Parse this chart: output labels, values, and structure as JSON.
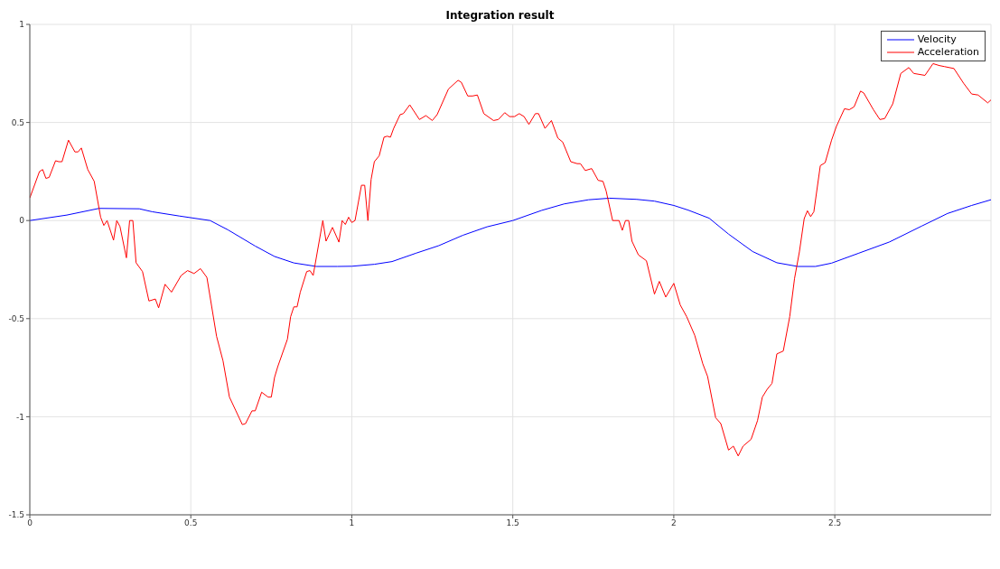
{
  "chart_data": {
    "type": "line",
    "title": "Integration result",
    "xlim": [
      0,
      2.985
    ],
    "xticks": [
      0,
      0.5,
      1,
      1.5,
      2,
      2.5
    ],
    "ylim": [
      -1.5,
      1
    ],
    "yticks": [
      -1.5,
      -1,
      -0.5,
      0,
      0.5,
      1
    ],
    "grid": true,
    "legend": "top right",
    "marker": "none",
    "line_style": "solid",
    "series": [
      {
        "name": "Velocity",
        "color": "#0000ff",
        "x": [
          0,
          0.115,
          0.215,
          0.34,
          0.38,
          0.465,
          0.56,
          0.615,
          0.7,
          0.76,
          0.82,
          0.89,
          0.955,
          1.0,
          1.07,
          1.125,
          1.2,
          1.27,
          1.345,
          1.42,
          1.5,
          1.59,
          1.66,
          1.735,
          1.8,
          1.885,
          1.94,
          2.0,
          2.045,
          2.11,
          2.17,
          2.245,
          2.32,
          2.385,
          2.44,
          2.49,
          2.575,
          2.67,
          2.77,
          2.85,
          2.925,
          2.985
        ],
        "values": [
          0,
          0.028,
          0.062,
          0.06,
          0.045,
          0.023,
          0,
          -0.047,
          -0.13,
          -0.183,
          -0.216,
          -0.234,
          -0.234,
          -0.233,
          -0.223,
          -0.209,
          -0.166,
          -0.128,
          -0.075,
          -0.032,
          0,
          0.052,
          0.085,
          0.106,
          0.114,
          0.108,
          0.099,
          0.077,
          0.053,
          0.012,
          -0.069,
          -0.158,
          -0.215,
          -0.234,
          -0.234,
          -0.217,
          -0.166,
          -0.109,
          -0.028,
          0.036,
          0.077,
          0.106
        ]
      },
      {
        "name": "Acceleration",
        "color": "#ff0000",
        "x": [
          0,
          0.03,
          0.04,
          0.05,
          0.06,
          0.08,
          0.09,
          0.1,
          0.12,
          0.14,
          0.15,
          0.16,
          0.18,
          0.2,
          0.22,
          0.23,
          0.24,
          0.26,
          0.27,
          0.28,
          0.3,
          0.31,
          0.32,
          0.33,
          0.35,
          0.37,
          0.39,
          0.4,
          0.42,
          0.44,
          0.47,
          0.49,
          0.51,
          0.53,
          0.55,
          0.58,
          0.6,
          0.62,
          0.64,
          0.66,
          0.67,
          0.69,
          0.7,
          0.72,
          0.74,
          0.75,
          0.76,
          0.77,
          0.8,
          0.81,
          0.82,
          0.83,
          0.84,
          0.86,
          0.87,
          0.88,
          0.91,
          0.92,
          0.94,
          0.96,
          0.97,
          0.98,
          0.99,
          1.0,
          1.01,
          1.03,
          1.04,
          1.05,
          1.06,
          1.07,
          1.085,
          1.1,
          1.11,
          1.12,
          1.13,
          1.15,
          1.16,
          1.18,
          1.21,
          1.23,
          1.25,
          1.265,
          1.3,
          1.33,
          1.34,
          1.36,
          1.375,
          1.39,
          1.41,
          1.44,
          1.455,
          1.475,
          1.49,
          1.505,
          1.52,
          1.535,
          1.55,
          1.57,
          1.58,
          1.6,
          1.62,
          1.64,
          1.655,
          1.68,
          1.7,
          1.71,
          1.725,
          1.745,
          1.765,
          1.78,
          1.79,
          1.81,
          1.83,
          1.84,
          1.85,
          1.86,
          1.87,
          1.89,
          1.915,
          1.94,
          1.955,
          1.975,
          2.0,
          2.02,
          2.04,
          2.065,
          2.09,
          2.105,
          2.13,
          2.146,
          2.17,
          2.185,
          2.2,
          2.215,
          2.24,
          2.26,
          2.275,
          2.29,
          2.305,
          2.32,
          2.34,
          2.36,
          2.375,
          2.39,
          2.405,
          2.415,
          2.425,
          2.435,
          2.455,
          2.47,
          2.49,
          2.505,
          2.53,
          2.545,
          2.56,
          2.58,
          2.59,
          2.62,
          2.64,
          2.655,
          2.68,
          2.705,
          2.73,
          2.745,
          2.78,
          2.805,
          2.825,
          2.84,
          2.87,
          2.9,
          2.925,
          2.945,
          2.975,
          2.985
        ],
        "values": [
          0.115,
          0.25,
          0.26,
          0.215,
          0.22,
          0.305,
          0.3,
          0.3,
          0.41,
          0.35,
          0.35,
          0.37,
          0.26,
          0.2,
          0.017,
          -0.025,
          0,
          -0.1,
          0,
          -0.03,
          -0.19,
          0,
          0,
          -0.215,
          -0.26,
          -0.41,
          -0.4,
          -0.445,
          -0.325,
          -0.365,
          -0.28,
          -0.255,
          -0.27,
          -0.245,
          -0.29,
          -0.59,
          -0.715,
          -0.9,
          -0.97,
          -1.04,
          -1.035,
          -0.97,
          -0.97,
          -0.875,
          -0.9,
          -0.9,
          -0.8,
          -0.745,
          -0.605,
          -0.49,
          -0.44,
          -0.44,
          -0.365,
          -0.26,
          -0.255,
          -0.28,
          0,
          -0.105,
          -0.035,
          -0.11,
          0,
          -0.02,
          0.017,
          -0.01,
          0,
          0.18,
          0.18,
          0,
          0.21,
          0.3,
          0.33,
          0.425,
          0.43,
          0.425,
          0.47,
          0.54,
          0.545,
          0.59,
          0.515,
          0.535,
          0.51,
          0.54,
          0.67,
          0.715,
          0.705,
          0.635,
          0.635,
          0.64,
          0.545,
          0.51,
          0.515,
          0.55,
          0.53,
          0.53,
          0.545,
          0.53,
          0.49,
          0.545,
          0.545,
          0.47,
          0.51,
          0.42,
          0.4,
          0.3,
          0.29,
          0.29,
          0.255,
          0.265,
          0.205,
          0.2,
          0.15,
          0,
          0,
          -0.05,
          0,
          0,
          -0.105,
          -0.175,
          -0.205,
          -0.375,
          -0.31,
          -0.39,
          -0.32,
          -0.43,
          -0.49,
          -0.585,
          -0.73,
          -0.795,
          -1.005,
          -1.035,
          -1.17,
          -1.15,
          -1.2,
          -1.15,
          -1.115,
          -1.02,
          -0.9,
          -0.86,
          -0.83,
          -0.68,
          -0.665,
          -0.49,
          -0.295,
          -0.16,
          0.01,
          0.05,
          0.02,
          0.045,
          0.28,
          0.295,
          0.41,
          0.48,
          0.57,
          0.565,
          0.58,
          0.66,
          0.65,
          0.565,
          0.515,
          0.52,
          0.595,
          0.75,
          0.78,
          0.75,
          0.74,
          0.8,
          0.79,
          0.785,
          0.775,
          0.7,
          0.645,
          0.64,
          0.6,
          0.615
        ]
      }
    ]
  }
}
